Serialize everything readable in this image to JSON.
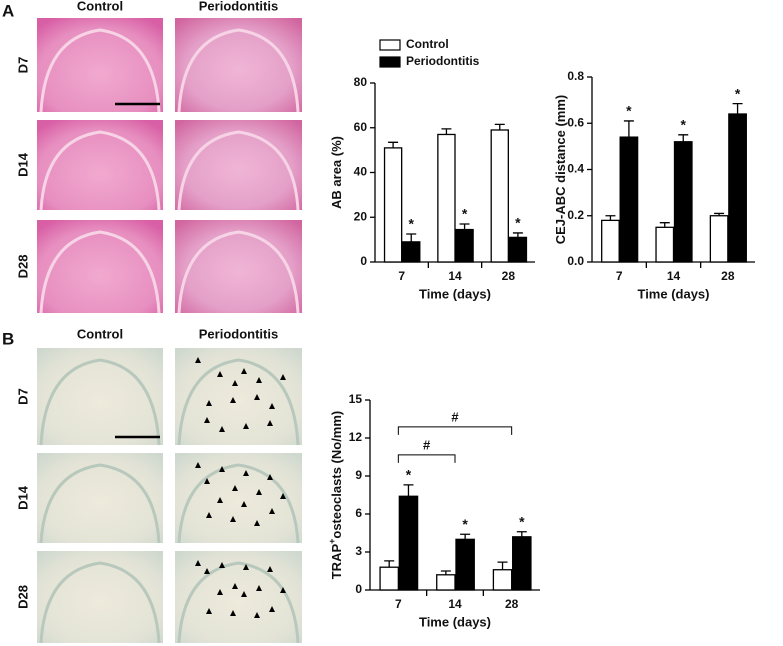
{
  "panels": [
    {
      "letter": "A",
      "columns": [
        "Control",
        "Periodontitis"
      ],
      "rows": [
        "D7",
        "D14",
        "D28"
      ]
    },
    {
      "letter": "B",
      "columns": [
        "Control",
        "Periodontitis"
      ],
      "rows": [
        "D7",
        "D14",
        "D28"
      ]
    }
  ],
  "chart_data": [
    {
      "type": "bar",
      "ylabel": [
        "AB area (%)"
      ],
      "xlabel": "Time (days)",
      "categories": [
        "7",
        "14",
        "28"
      ],
      "ylim": [
        0,
        80
      ],
      "yticks": [
        0,
        20,
        40,
        60,
        80
      ],
      "legend": true,
      "series": [
        {
          "name": "Control",
          "color": "#ffffff",
          "values": [
            51,
            57,
            59
          ],
          "errors": [
            2.5,
            2.5,
            2.5
          ]
        },
        {
          "name": "Periodontitis",
          "color": "#000000",
          "values": [
            9,
            14.5,
            11
          ],
          "errors": [
            3.5,
            2.5,
            2
          ],
          "labels": [
            "*",
            "*",
            "*"
          ]
        }
      ]
    },
    {
      "type": "bar",
      "ylabel": [
        "CEJ-ABC distance (mm)"
      ],
      "xlabel": "Time (days)",
      "categories": [
        "7",
        "14",
        "28"
      ],
      "ylim": [
        0,
        0.8
      ],
      "yticks": [
        {
          "value": 0,
          "label": "0.0"
        },
        0.2,
        0.4,
        0.6,
        0.8
      ],
      "legend": false,
      "series": [
        {
          "color": "#ffffff",
          "values": [
            0.18,
            0.15,
            0.2
          ],
          "errors": [
            0.02,
            0.02,
            0.01
          ]
        },
        {
          "color": "#000000",
          "values": [
            0.54,
            0.52,
            0.64
          ],
          "errors": [
            0.07,
            0.03,
            0.045
          ],
          "labels": [
            "*",
            "*",
            "*"
          ]
        }
      ]
    },
    {
      "type": "bar",
      "ylabel": [
        "TRAP",
        "+",
        "osteoclasts (No/mm)"
      ],
      "xlabel": "Time (days)",
      "categories": [
        "7",
        "14",
        "28"
      ],
      "ylim": [
        0,
        15
      ],
      "yticks": [
        0,
        3,
        6,
        9,
        12,
        15
      ],
      "legend": false,
      "series": [
        {
          "color": "#ffffff",
          "values": [
            1.8,
            1.2,
            1.6
          ],
          "errors": [
            0.5,
            0.3,
            0.6
          ]
        },
        {
          "color": "#000000",
          "values": [
            7.4,
            4.0,
            4.2
          ],
          "errors": [
            0.9,
            0.4,
            0.4
          ],
          "labels": [
            "*",
            "*",
            "*"
          ]
        }
      ],
      "brackets": [
        {
          "between": [
            "7",
            "14"
          ],
          "label": "#"
        },
        {
          "between": [
            "7",
            "28"
          ],
          "label": "#"
        }
      ]
    }
  ]
}
